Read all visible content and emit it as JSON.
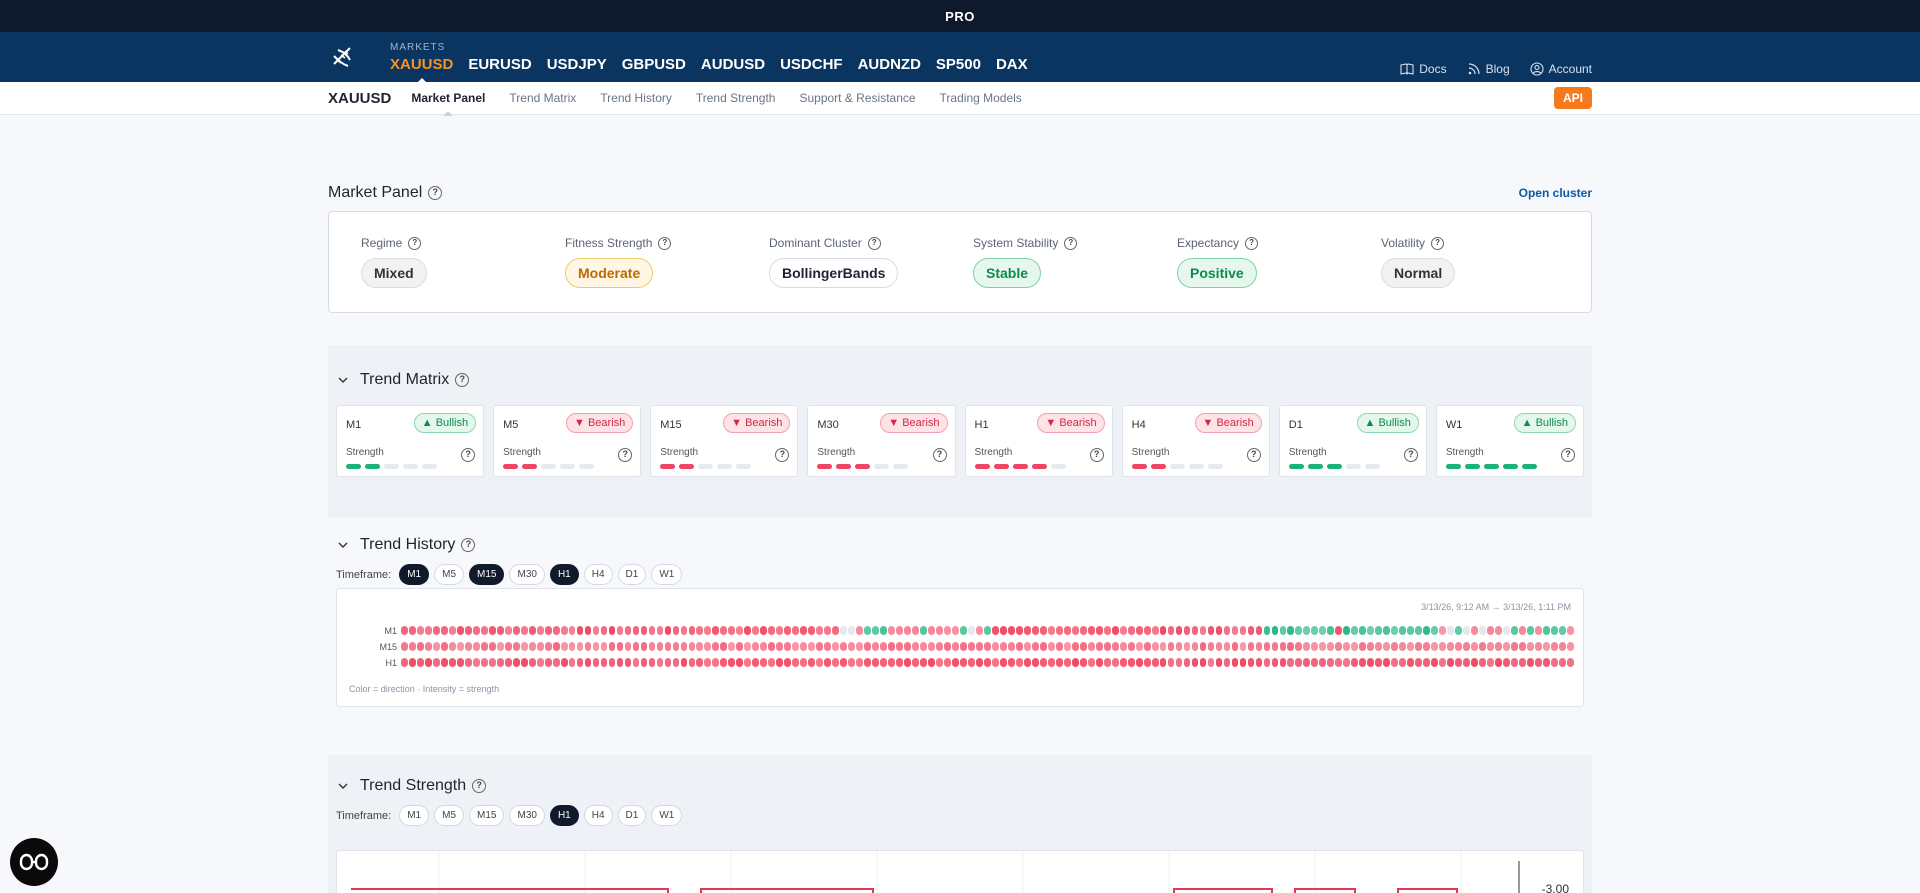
{
  "header": {
    "badge": "PRO"
  },
  "markets": {
    "label": "MARKETS",
    "items": [
      "XAUUSD",
      "EURUSD",
      "USDJPY",
      "GBPUSD",
      "AUDUSD",
      "USDCHF",
      "AUDNZD",
      "SP500",
      "DAX"
    ],
    "active": 0
  },
  "top_links": [
    {
      "label": "Docs",
      "icon": "book-icon"
    },
    {
      "label": "Blog",
      "icon": "rss-icon"
    },
    {
      "label": "Account",
      "icon": "user-icon"
    }
  ],
  "sub_nav": {
    "symbol": "XAUUSD",
    "tabs": [
      "Market Panel",
      "Trend Matrix",
      "Trend History",
      "Trend Strength",
      "Support & Resistance",
      "Trading Models"
    ],
    "active": 0,
    "api_label": "API"
  },
  "market_panel": {
    "title": "Market Panel",
    "open_cluster": "Open cluster",
    "metrics": [
      {
        "label": "Regime",
        "value": "Mixed",
        "style": "neutral"
      },
      {
        "label": "Fitness Strength",
        "value": "Moderate",
        "style": "warn"
      },
      {
        "label": "Dominant Cluster",
        "value": "BollingerBands",
        "style": "white"
      },
      {
        "label": "System Stability",
        "value": "Stable",
        "style": "good"
      },
      {
        "label": "Expectancy",
        "value": "Positive",
        "style": "good"
      },
      {
        "label": "Volatility",
        "value": "Normal",
        "style": "neutral"
      }
    ]
  },
  "trend_matrix": {
    "title": "Trend Matrix",
    "strength_label": "Strength",
    "cards": [
      {
        "tf": "M1",
        "direction": "Bullish",
        "strength": 2
      },
      {
        "tf": "M5",
        "direction": "Bearish",
        "strength": 2
      },
      {
        "tf": "M15",
        "direction": "Bearish",
        "strength": 2
      },
      {
        "tf": "M30",
        "direction": "Bearish",
        "strength": 3
      },
      {
        "tf": "H1",
        "direction": "Bearish",
        "strength": 4
      },
      {
        "tf": "H4",
        "direction": "Bearish",
        "strength": 2
      },
      {
        "tf": "D1",
        "direction": "Bullish",
        "strength": 3
      },
      {
        "tf": "W1",
        "direction": "Bullish",
        "strength": 5
      }
    ]
  },
  "trend_history": {
    "title": "Trend History",
    "timeframe_label": "Timeframe:",
    "timeframes": [
      "M1",
      "M5",
      "M15",
      "M30",
      "H1",
      "H4",
      "D1",
      "W1"
    ],
    "selected": [
      "M1",
      "M15",
      "H1"
    ],
    "range": "3/13/26, 9:12 AM → 3/13/26, 1:11 PM",
    "rows": [
      "M1",
      "M15",
      "H1"
    ],
    "note": "Color = direction · Intensity = strength"
  },
  "trend_strength": {
    "title": "Trend Strength",
    "timeframe_label": "Timeframe:",
    "timeframes": [
      "M1",
      "M5",
      "M15",
      "M30",
      "H1",
      "H4",
      "D1",
      "W1"
    ],
    "selected": [
      "H1"
    ],
    "y_tick": "-3.00"
  },
  "colors": {
    "bull": "#19b37a",
    "bear": "#ef4560",
    "accent": "#f7931e",
    "nav": "#0b3561"
  }
}
